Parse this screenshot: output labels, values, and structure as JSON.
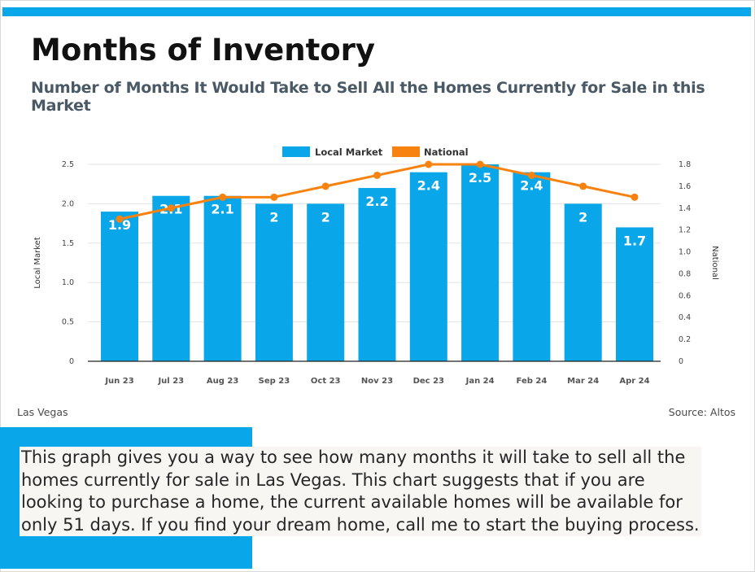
{
  "header": {
    "title": "Months of Inventory",
    "subtitle": "Number of Months It Would Take to Sell All the Homes Currently for Sale in this Market"
  },
  "chart_data": {
    "type": "bar+line",
    "categories": [
      "Jun 23",
      "Jul 23",
      "Aug 23",
      "Sep 23",
      "Oct 23",
      "Nov 23",
      "Dec 23",
      "Jan 24",
      "Feb 24",
      "Mar 24",
      "Apr 24"
    ],
    "series": [
      {
        "name": "Local Market",
        "type": "bar",
        "axis": "left",
        "values": [
          1.9,
          2.1,
          2.1,
          2,
          2,
          2.2,
          2.4,
          2.5,
          2.4,
          2,
          1.7
        ],
        "labels": [
          "1.9",
          "2.1",
          "2.1",
          "2",
          "2",
          "2.2",
          "2.4",
          "2.5",
          "2.4",
          "2",
          "1.7"
        ],
        "color": "#0aa6ea"
      },
      {
        "name": "National",
        "type": "line",
        "axis": "right",
        "values": [
          1.3,
          1.4,
          1.5,
          1.5,
          1.6,
          1.7,
          1.8,
          1.8,
          1.7,
          1.6,
          1.5
        ],
        "color": "#f7820f"
      }
    ],
    "left_axis": {
      "label": "Local Market",
      "ylim": [
        0,
        2.5
      ],
      "ticks": [
        "0",
        "0.5",
        "1.0",
        "1.5",
        "2.0",
        "2.5"
      ]
    },
    "right_axis": {
      "label": "National",
      "ylim": [
        0,
        1.8
      ],
      "ticks": [
        "0",
        "0.2",
        "0.4",
        "0.6",
        "0.8",
        "1.0",
        "1.2",
        "1.4",
        "1.6",
        "1.8"
      ]
    },
    "legend_position": "top"
  },
  "footer": {
    "location": "Las Vegas",
    "source": "Source: Altos"
  },
  "description": "This graph gives you a way to see how many months it will take to sell all the homes currently for sale in Las Vegas.  This chart suggests that if you are looking to purchase a home, the current available homes will be available for only 51 days.   If you find your dream home, call me to start the buying process.",
  "colors": {
    "accent_blue": "#0aa6ea",
    "accent_orange": "#f7820f"
  }
}
